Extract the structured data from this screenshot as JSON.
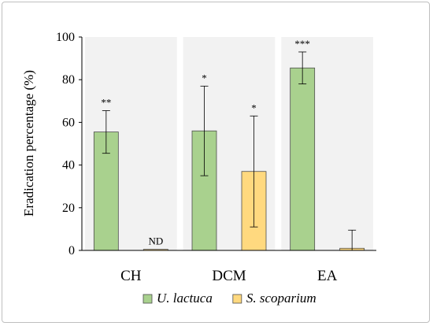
{
  "chart_data": {
    "type": "bar",
    "categories": [
      "CH",
      "DCM",
      "EA"
    ],
    "ylabel": "Eradication percentage (%)",
    "ylim": [
      0,
      100
    ],
    "yticks": [
      0,
      20,
      40,
      60,
      80,
      100
    ],
    "grid": false,
    "legend": "bottom",
    "series": [
      {
        "name": "U. lactuca",
        "color": "#a9d18e",
        "values": [
          55.5,
          56,
          85.5
        ],
        "errors": [
          10,
          21,
          7.5
        ],
        "annotations": [
          "**",
          "*",
          "***"
        ]
      },
      {
        "name": "S. scoparium",
        "color": "#ffd97f",
        "values": [
          0.5,
          37,
          1
        ],
        "errors": [
          0,
          26,
          8.5
        ],
        "annotations": [
          "ND",
          "*",
          ""
        ]
      }
    ],
    "panel_color": "#f2f2f2"
  }
}
